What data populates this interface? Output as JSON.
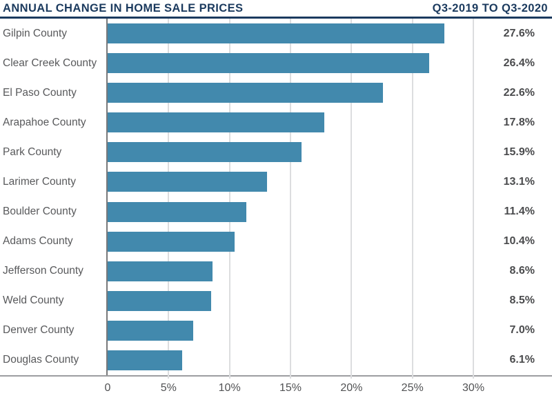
{
  "chart_data": {
    "type": "bar",
    "orientation": "horizontal",
    "title": "ANNUAL CHANGE IN HOME SALE PRICES",
    "subtitle": "Q3-2019 TO Q3-2020",
    "categories": [
      "Gilpin County",
      "Clear Creek County",
      "El Paso County",
      "Arapahoe County",
      "Park County",
      "Larimer County",
      "Boulder County",
      "Adams County",
      "Jefferson County",
      "Weld County",
      "Denver County",
      "Douglas County"
    ],
    "values": [
      27.6,
      26.4,
      22.6,
      17.8,
      15.9,
      13.1,
      11.4,
      10.4,
      8.6,
      8.5,
      7.0,
      6.1
    ],
    "value_labels": [
      "27.6%",
      "26.4%",
      "22.6%",
      "17.8%",
      "15.9%",
      "13.1%",
      "11.4%",
      "10.4%",
      "8.6%",
      "8.5%",
      "7.0%",
      "6.1%"
    ],
    "xlabel": "",
    "ylabel": "",
    "x_ticks": [
      "0",
      "5%",
      "10%",
      "15%",
      "20%",
      "25%",
      "30%"
    ],
    "x_tick_values": [
      0,
      5,
      10,
      15,
      20,
      25,
      30
    ],
    "xlim": [
      0,
      36.45
    ],
    "grid": true,
    "legend": "none",
    "colors": {
      "bar": "#4289ad",
      "title_navy": "#1b3a5e",
      "label_gray": "#58595b",
      "value_gray": "#4a4b4d",
      "gridline": "#dcdddf",
      "y_axis": "#77787a",
      "x_axis": "#9c9da0"
    }
  }
}
